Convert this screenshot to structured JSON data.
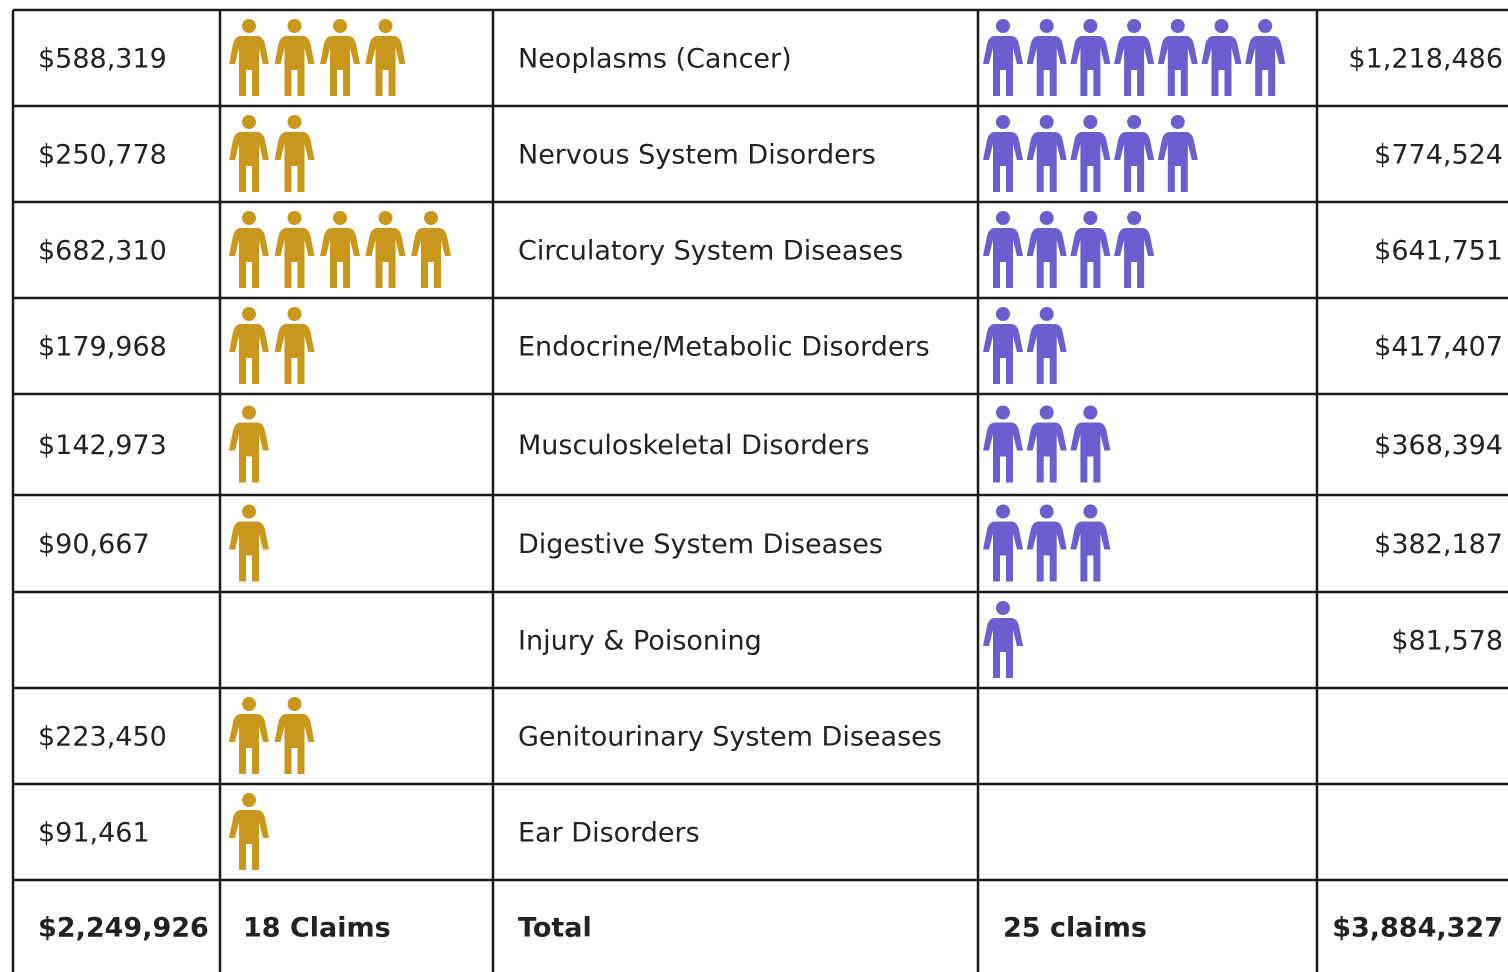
{
  "table": {
    "rows": [
      {
        "left_amount": "$588,319",
        "left_claims": 4,
        "category": "Neoplasms (Cancer)",
        "right_claims": 7,
        "right_amount": "$1,218,486"
      },
      {
        "left_amount": "$250,778",
        "left_claims": 2,
        "category": "Nervous System Disorders",
        "right_claims": 5,
        "right_amount": "$774,524"
      },
      {
        "left_amount": "$682,310",
        "left_claims": 5,
        "category": "Circulatory System Diseases",
        "right_claims": 4,
        "right_amount": "$641,751"
      },
      {
        "left_amount": "$179,968",
        "left_claims": 2,
        "category": "Endocrine/Metabolic Disorders",
        "right_claims": 2,
        "right_amount": "$417,407"
      },
      {
        "left_amount": "$142,973",
        "left_claims": 1,
        "category": "Musculoskeletal Disorders",
        "right_claims": 3,
        "right_amount": "$368,394"
      },
      {
        "left_amount": "$90,667",
        "left_claims": 1,
        "category": "Digestive System Diseases",
        "right_claims": 3,
        "right_amount": "$382,187"
      },
      {
        "left_amount": null,
        "left_claims": null,
        "category": "Injury & Poisoning",
        "right_claims": 1,
        "right_amount": "$81,578"
      },
      {
        "left_amount": "$223,450",
        "left_claims": 2,
        "category": "Genitourinary System Diseases",
        "right_claims": null,
        "right_amount": null
      },
      {
        "left_amount": "$91,461",
        "left_claims": 1,
        "category": "Ear Disorders",
        "right_claims": null,
        "right_amount": null
      }
    ],
    "total": {
      "left_amount": "$2,249,926",
      "left_claims": "18 Claims",
      "label": "Total",
      "right_claims": "25 claims",
      "right_amount": "$3,884,327"
    },
    "left_color": "#c9971c",
    "right_color": "#6b5fd0"
  }
}
